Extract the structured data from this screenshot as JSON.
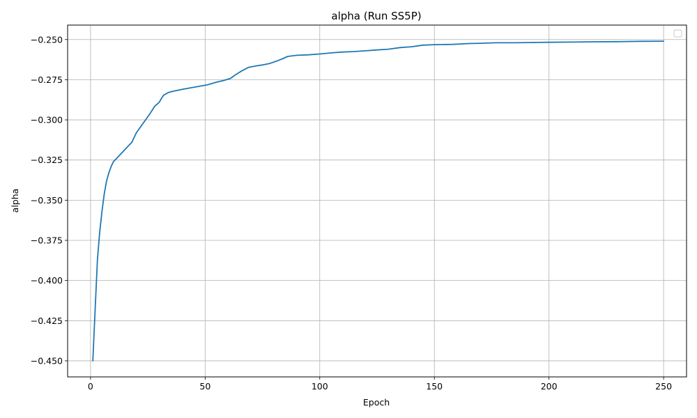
{
  "chart_data": {
    "type": "line",
    "title": "alpha (Run SS5P)",
    "xlabel": "Epoch",
    "ylabel": "alpha",
    "xlim": [
      -10,
      260
    ],
    "ylim": [
      -0.46,
      -0.241
    ],
    "grid": true,
    "legend": "upper-right (empty)",
    "x_ticks": [
      0,
      50,
      100,
      150,
      200,
      250
    ],
    "x_tick_labels": [
      "0",
      "50",
      "100",
      "150",
      "200",
      "250"
    ],
    "y_ticks": [
      -0.25,
      -0.275,
      -0.3,
      -0.325,
      -0.35,
      -0.375,
      -0.4,
      -0.425,
      -0.45
    ],
    "y_tick_labels": [
      "−0.250",
      "−0.275",
      "−0.300",
      "−0.325",
      "−0.350",
      "−0.375",
      "−0.400",
      "−0.425",
      "−0.450"
    ],
    "series": [
      {
        "color": "#1f77b4",
        "x": [
          1,
          2,
          3,
          4,
          5,
          6,
          7,
          8,
          9,
          10,
          12,
          14,
          16,
          18,
          19,
          20,
          21,
          22,
          24,
          26,
          28,
          30,
          31,
          32,
          34,
          36,
          40,
          44,
          47,
          51,
          55,
          58,
          61,
          63,
          66,
          69,
          72,
          75,
          78,
          81,
          84,
          86,
          90,
          95,
          100,
          105,
          110,
          115,
          120,
          125,
          130,
          135,
          140,
          145,
          150,
          158,
          165,
          170,
          177,
          185,
          195,
          200,
          210,
          220,
          230,
          240,
          250
        ],
        "y": [
          -0.45,
          -0.418,
          -0.387,
          -0.37,
          -0.357,
          -0.346,
          -0.338,
          -0.333,
          -0.329,
          -0.326,
          -0.323,
          -0.32,
          -0.317,
          -0.314,
          -0.311,
          -0.308,
          -0.306,
          -0.304,
          -0.3,
          -0.296,
          -0.2915,
          -0.289,
          -0.2865,
          -0.2845,
          -0.283,
          -0.2822,
          -0.281,
          -0.28,
          -0.2792,
          -0.2782,
          -0.2765,
          -0.2755,
          -0.2742,
          -0.2722,
          -0.2695,
          -0.2673,
          -0.2665,
          -0.2658,
          -0.265,
          -0.2635,
          -0.2618,
          -0.2605,
          -0.2598,
          -0.2595,
          -0.259,
          -0.2583,
          -0.2578,
          -0.2575,
          -0.257,
          -0.2565,
          -0.256,
          -0.255,
          -0.2545,
          -0.2535,
          -0.2532,
          -0.253,
          -0.2525,
          -0.2523,
          -0.252,
          -0.252,
          -0.2518,
          -0.2517,
          -0.2516,
          -0.2514,
          -0.2513,
          -0.2511,
          -0.251
        ]
      }
    ]
  }
}
